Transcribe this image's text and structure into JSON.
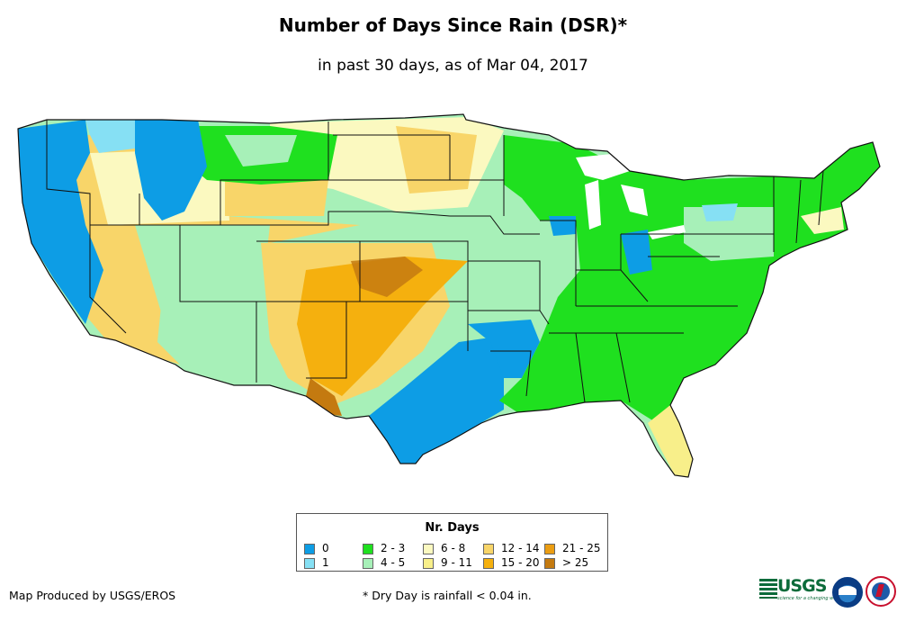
{
  "title": "Number of Days Since Rain (DSR)*",
  "subtitle": "in past 30 days, as of Mar 04, 2017",
  "legend": {
    "title": "Nr. Days",
    "items": [
      {
        "label": "0",
        "color": "#0d9de5"
      },
      {
        "label": "1",
        "color": "#86e0f4"
      },
      {
        "label": "2 - 3",
        "color": "#1fe01f"
      },
      {
        "label": "4 - 5",
        "color": "#a7f0b8"
      },
      {
        "label": "6 - 8",
        "color": "#fbf9c0"
      },
      {
        "label": "9 - 11",
        "color": "#f8ef8a"
      },
      {
        "label": "12 - 14",
        "color": "#f8d569"
      },
      {
        "label": "15 - 20",
        "color": "#f5b00e"
      },
      {
        "label": "21 - 25",
        "color": "#eb9d12"
      },
      {
        "label": "> 25",
        "color": "#c47a10"
      }
    ]
  },
  "footer": {
    "credit": "Map Produced by USGS/EROS",
    "note": "* Dry Day is rainfall < 0.04 in."
  },
  "logos": {
    "usgs_word": "USGS",
    "usgs_tagline": "science for a changing world"
  }
}
